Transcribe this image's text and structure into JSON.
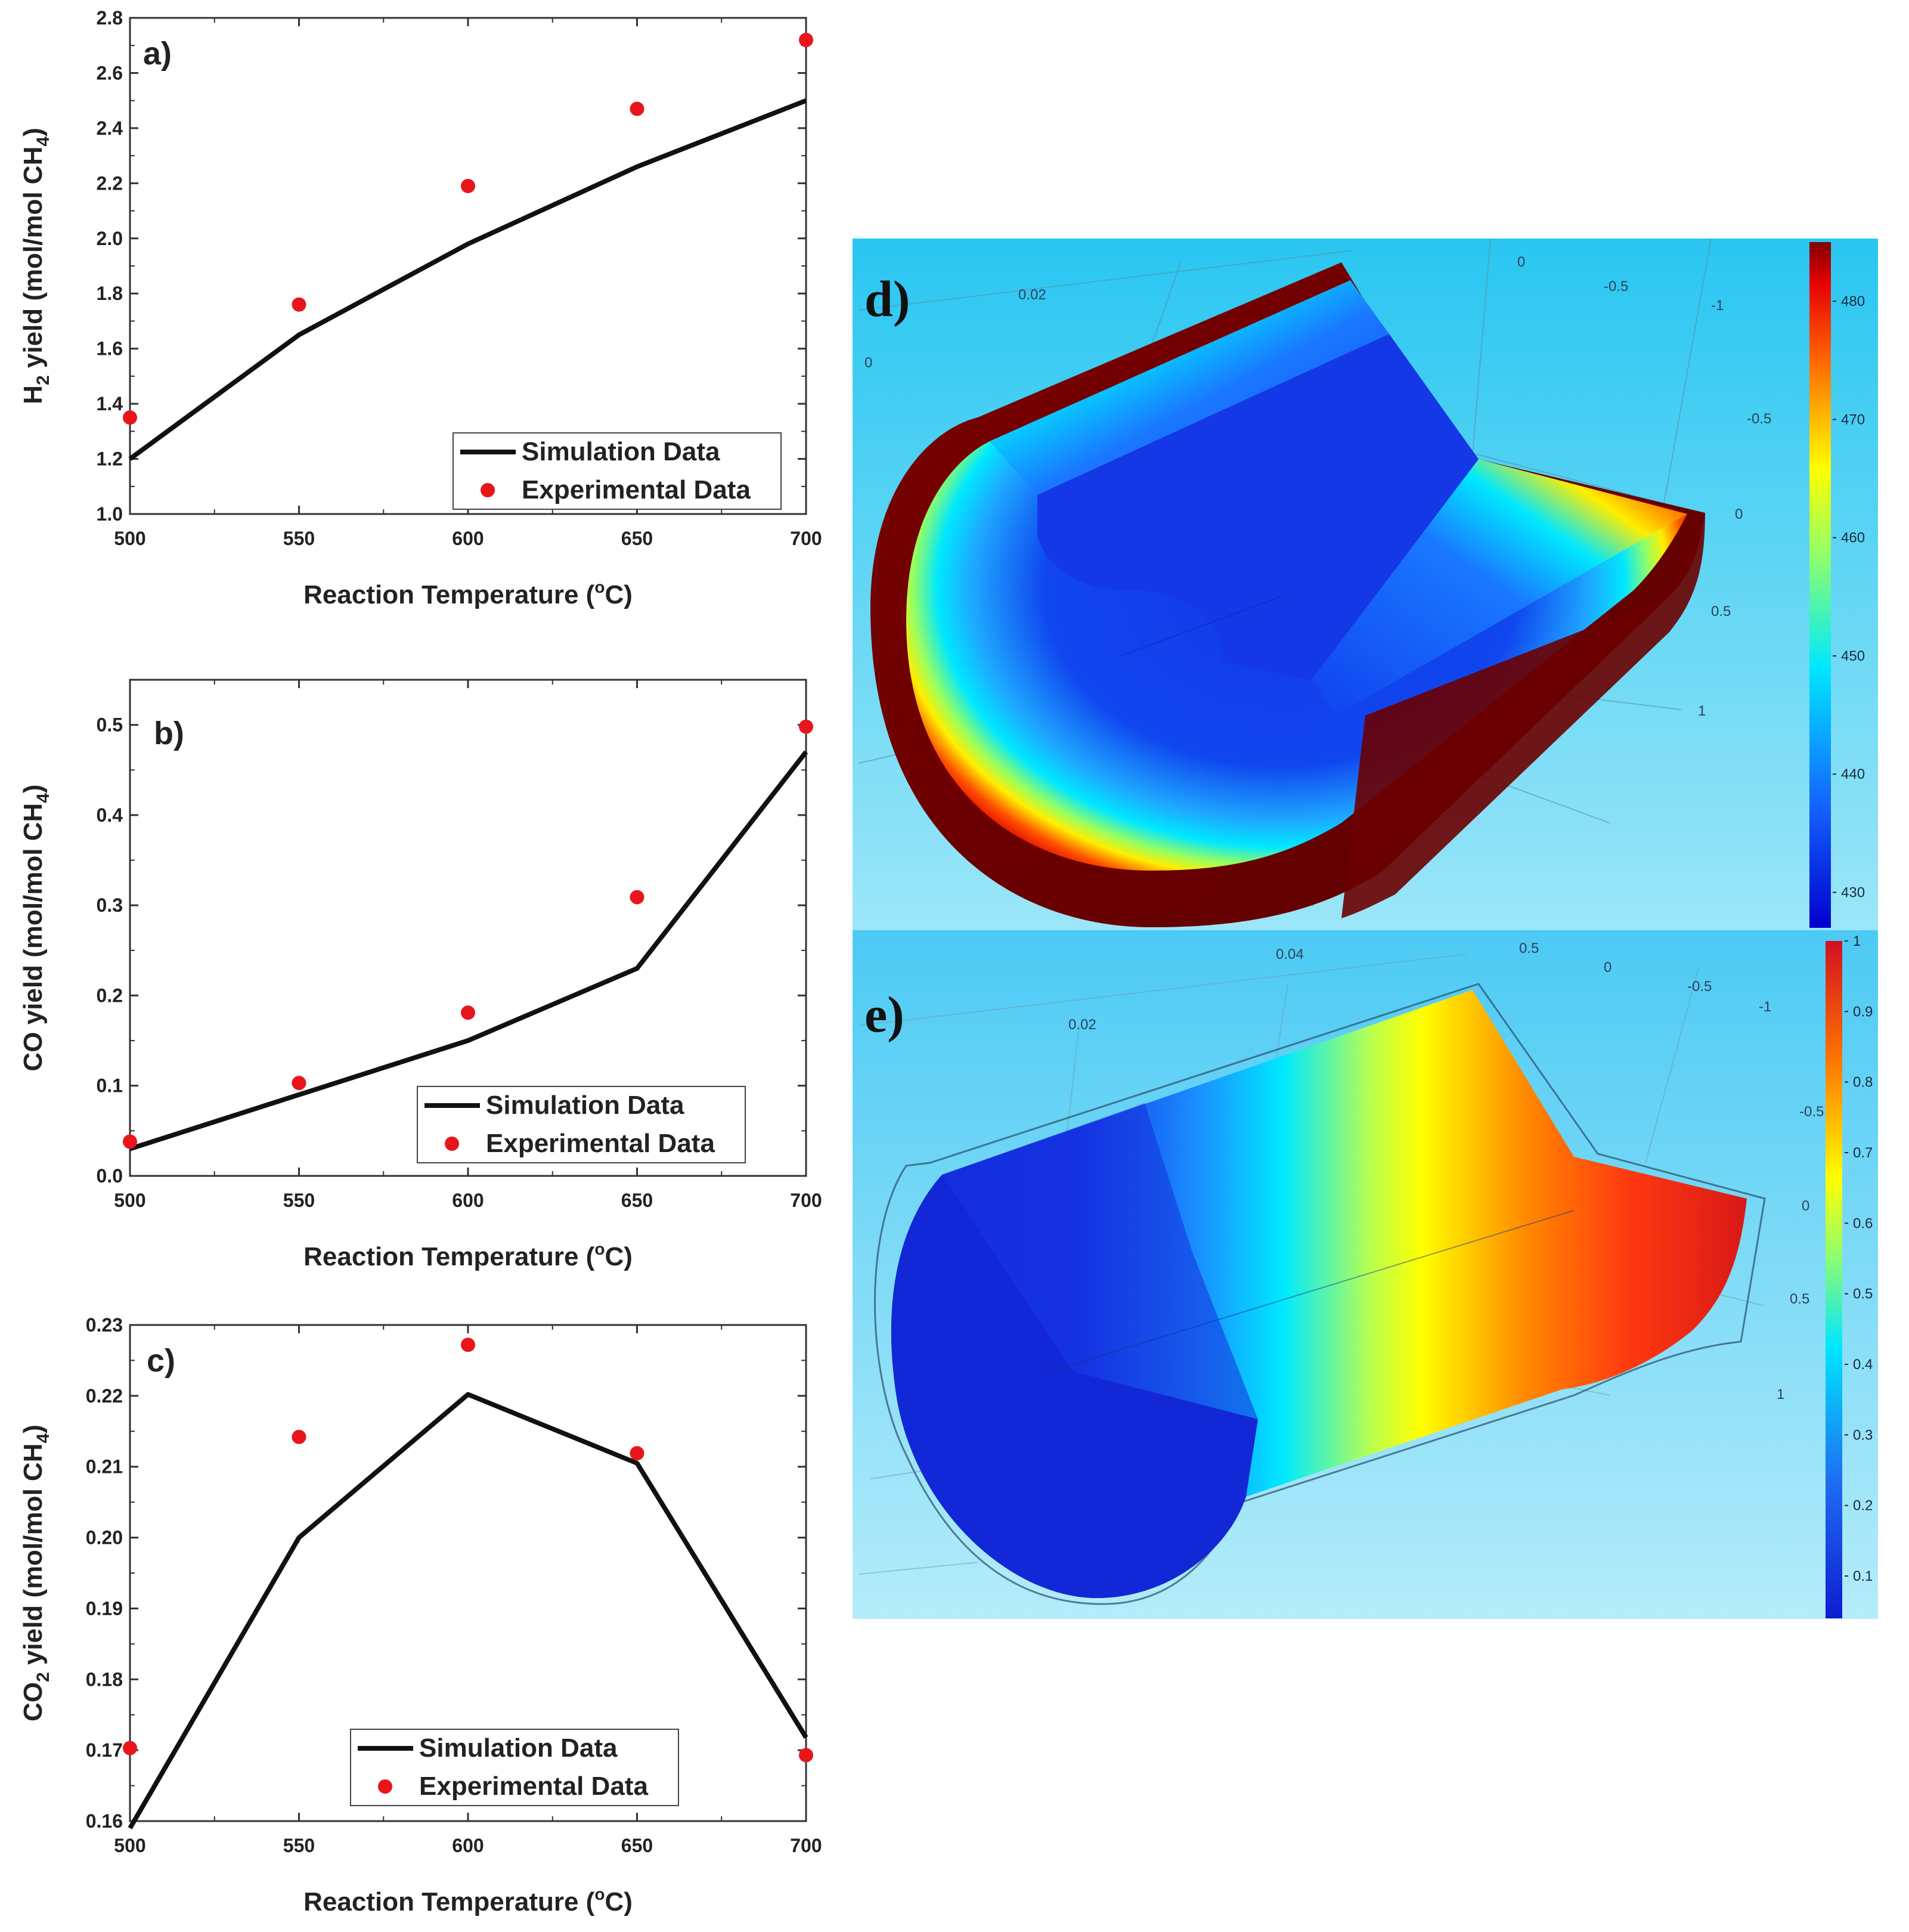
{
  "chart_data": [
    {
      "id": "a",
      "type": "line",
      "panel_label": "a)",
      "xlabel": "Reaction Temperature (°C)",
      "ylabel": "H2 yield (mol/mol CH4)",
      "xlim": [
        500,
        700
      ],
      "ylim": [
        1.0,
        2.8
      ],
      "xticks": [
        "500",
        "550",
        "600",
        "650",
        "700"
      ],
      "yticks": [
        "1.0",
        "1.2",
        "1.4",
        "1.6",
        "1.8",
        "2.0",
        "2.2",
        "2.4",
        "2.6",
        "2.8"
      ],
      "x": [
        500,
        550,
        600,
        650,
        700
      ],
      "series": [
        {
          "name": "Simulation Data",
          "style": "line",
          "values": [
            1.2,
            1.65,
            1.98,
            2.26,
            2.5
          ]
        },
        {
          "name": "Experimental Data",
          "style": "scatter",
          "values": [
            1.35,
            1.76,
            2.19,
            2.47,
            2.72
          ]
        }
      ],
      "legend_position": "bottom-right"
    },
    {
      "id": "b",
      "type": "line",
      "panel_label": "b)",
      "xlabel": "Reaction Temperature (°C)",
      "ylabel": "CO yield (mol/mol CH4)",
      "xlim": [
        500,
        700
      ],
      "ylim": [
        0.0,
        0.55
      ],
      "xticks": [
        "500",
        "550",
        "600",
        "650",
        "700"
      ],
      "yticks": [
        "0.0",
        "0.1",
        "0.2",
        "0.3",
        "0.4",
        "0.5"
      ],
      "x": [
        500,
        550,
        600,
        650,
        700
      ],
      "series": [
        {
          "name": "Simulation Data",
          "style": "line",
          "values": [
            0.03,
            0.09,
            0.15,
            0.23,
            0.47
          ]
        },
        {
          "name": "Experimental Data",
          "style": "scatter",
          "values": [
            0.038,
            0.103,
            0.181,
            0.309,
            0.498
          ]
        }
      ],
      "legend_position": "bottom-right"
    },
    {
      "id": "c",
      "type": "line",
      "panel_label": "c)",
      "xlabel": "Reaction Temperature (°C)",
      "ylabel": "CO2 yield (mol/mol CH4)",
      "xlim": [
        500,
        700
      ],
      "ylim": [
        0.16,
        0.23
      ],
      "xticks": [
        "500",
        "550",
        "600",
        "650",
        "700"
      ],
      "yticks": [
        "0.16",
        "0.17",
        "0.18",
        "0.19",
        "0.20",
        "0.21",
        "0.22",
        "0.23"
      ],
      "x": [
        500,
        550,
        600,
        650,
        700
      ],
      "series": [
        {
          "name": "Simulation Data",
          "style": "line",
          "values": [
            0.159,
            0.2,
            0.2202,
            0.2105,
            0.1718
          ]
        },
        {
          "name": "Experimental Data",
          "style": "scatter",
          "values": [
            0.1703,
            0.2142,
            0.2272,
            0.2119,
            0.1693
          ]
        }
      ],
      "legend_position": "bottom-right"
    },
    {
      "id": "d",
      "type": "heatmap",
      "panel_label": "d)",
      "axis_labels": [
        "0.02",
        "0",
        "0",
        "-0.5",
        "-1",
        "-0.5",
        "0",
        "0.5",
        "1"
      ],
      "colorbar": {
        "ticks": [
          "480",
          "470",
          "460",
          "450",
          "440",
          "430"
        ],
        "range": [
          427,
          485
        ]
      }
    },
    {
      "id": "e",
      "type": "heatmap",
      "panel_label": "e)",
      "axis_labels": [
        "0.04",
        "0.02",
        "0.5",
        "0",
        "-0.5",
        "-1",
        "-0.5",
        "0",
        "0.5",
        "1"
      ],
      "colorbar": {
        "ticks": [
          "1",
          "0.9",
          "0.8",
          "0.7",
          "0.6",
          "0.5",
          "0.4",
          "0.3",
          "0.2",
          "0.1"
        ],
        "range": [
          0.04,
          1.0
        ]
      }
    }
  ],
  "colors": {
    "simulation": "#111111",
    "experimental": "#e8161b",
    "sim_background": "#3ecff3"
  }
}
